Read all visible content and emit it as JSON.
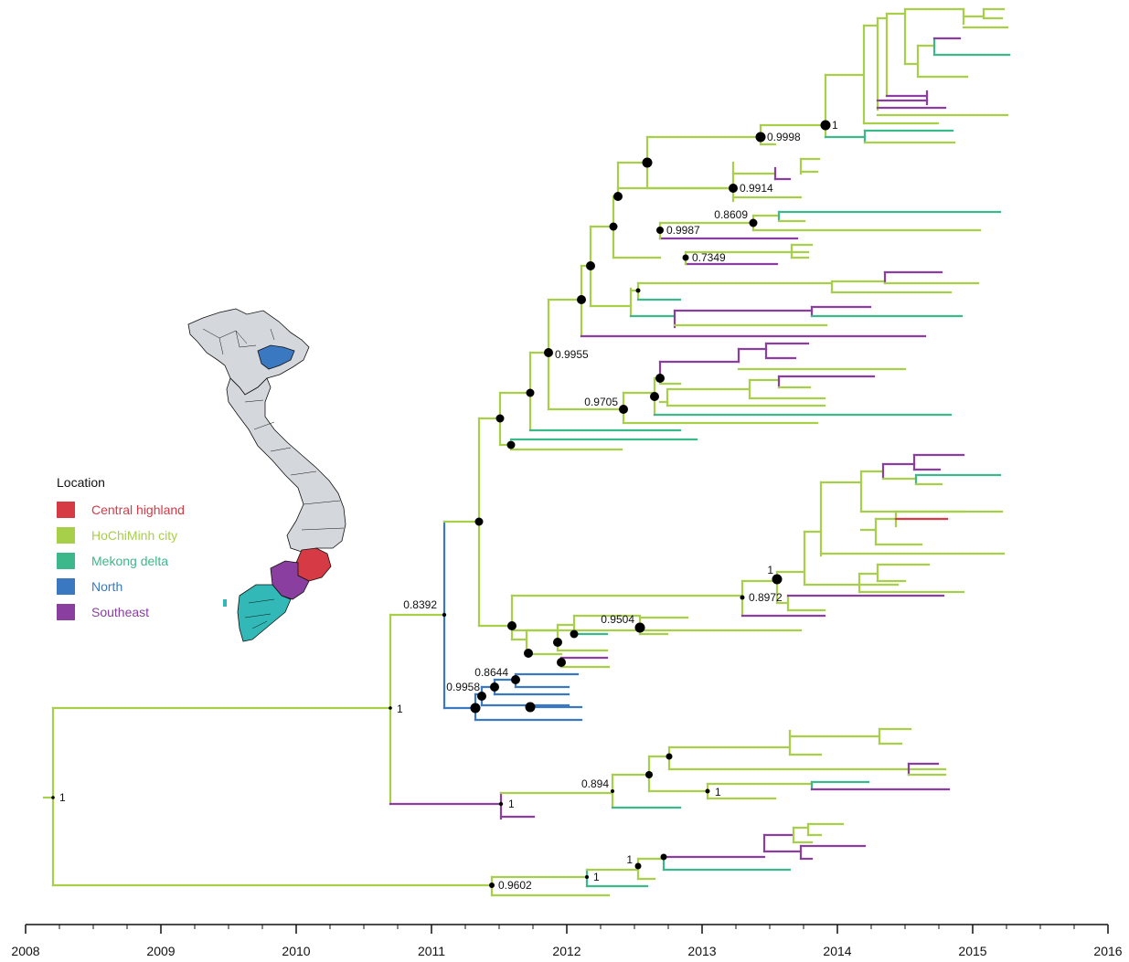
{
  "axis": {
    "years": [
      "2008",
      "2009",
      "2010",
      "2011",
      "2012",
      "2013",
      "2014",
      "2015",
      "2016"
    ]
  },
  "legend": {
    "title": "Location",
    "items": [
      {
        "label": "Central highland",
        "color": "#d63a45"
      },
      {
        "label": "HoChiMinh city",
        "color": "#a8cf4a"
      },
      {
        "label": "Mekong delta",
        "color": "#3cb88a"
      },
      {
        "label": "North",
        "color": "#3a78c2"
      },
      {
        "label": "Southeast",
        "color": "#8a3fa0"
      }
    ]
  },
  "node_labels": [
    "1",
    "1",
    "0.8392",
    "1",
    "0.9998",
    "1",
    "0.9914",
    "0.8609",
    "0.9987",
    "0.7349",
    "0.9955",
    "0.9705",
    "1",
    "0.8972",
    "0.9504",
    "0.8644",
    "0.9958",
    "0.894",
    "1",
    "0.9602",
    "1",
    "1"
  ],
  "map": {
    "region_colors": {
      "other": "#d4d8dc",
      "north": "#3a78c2",
      "central_highland": "#d63a45",
      "southeast": "#8a3fa0",
      "mekong": "#33b8b8"
    }
  }
}
